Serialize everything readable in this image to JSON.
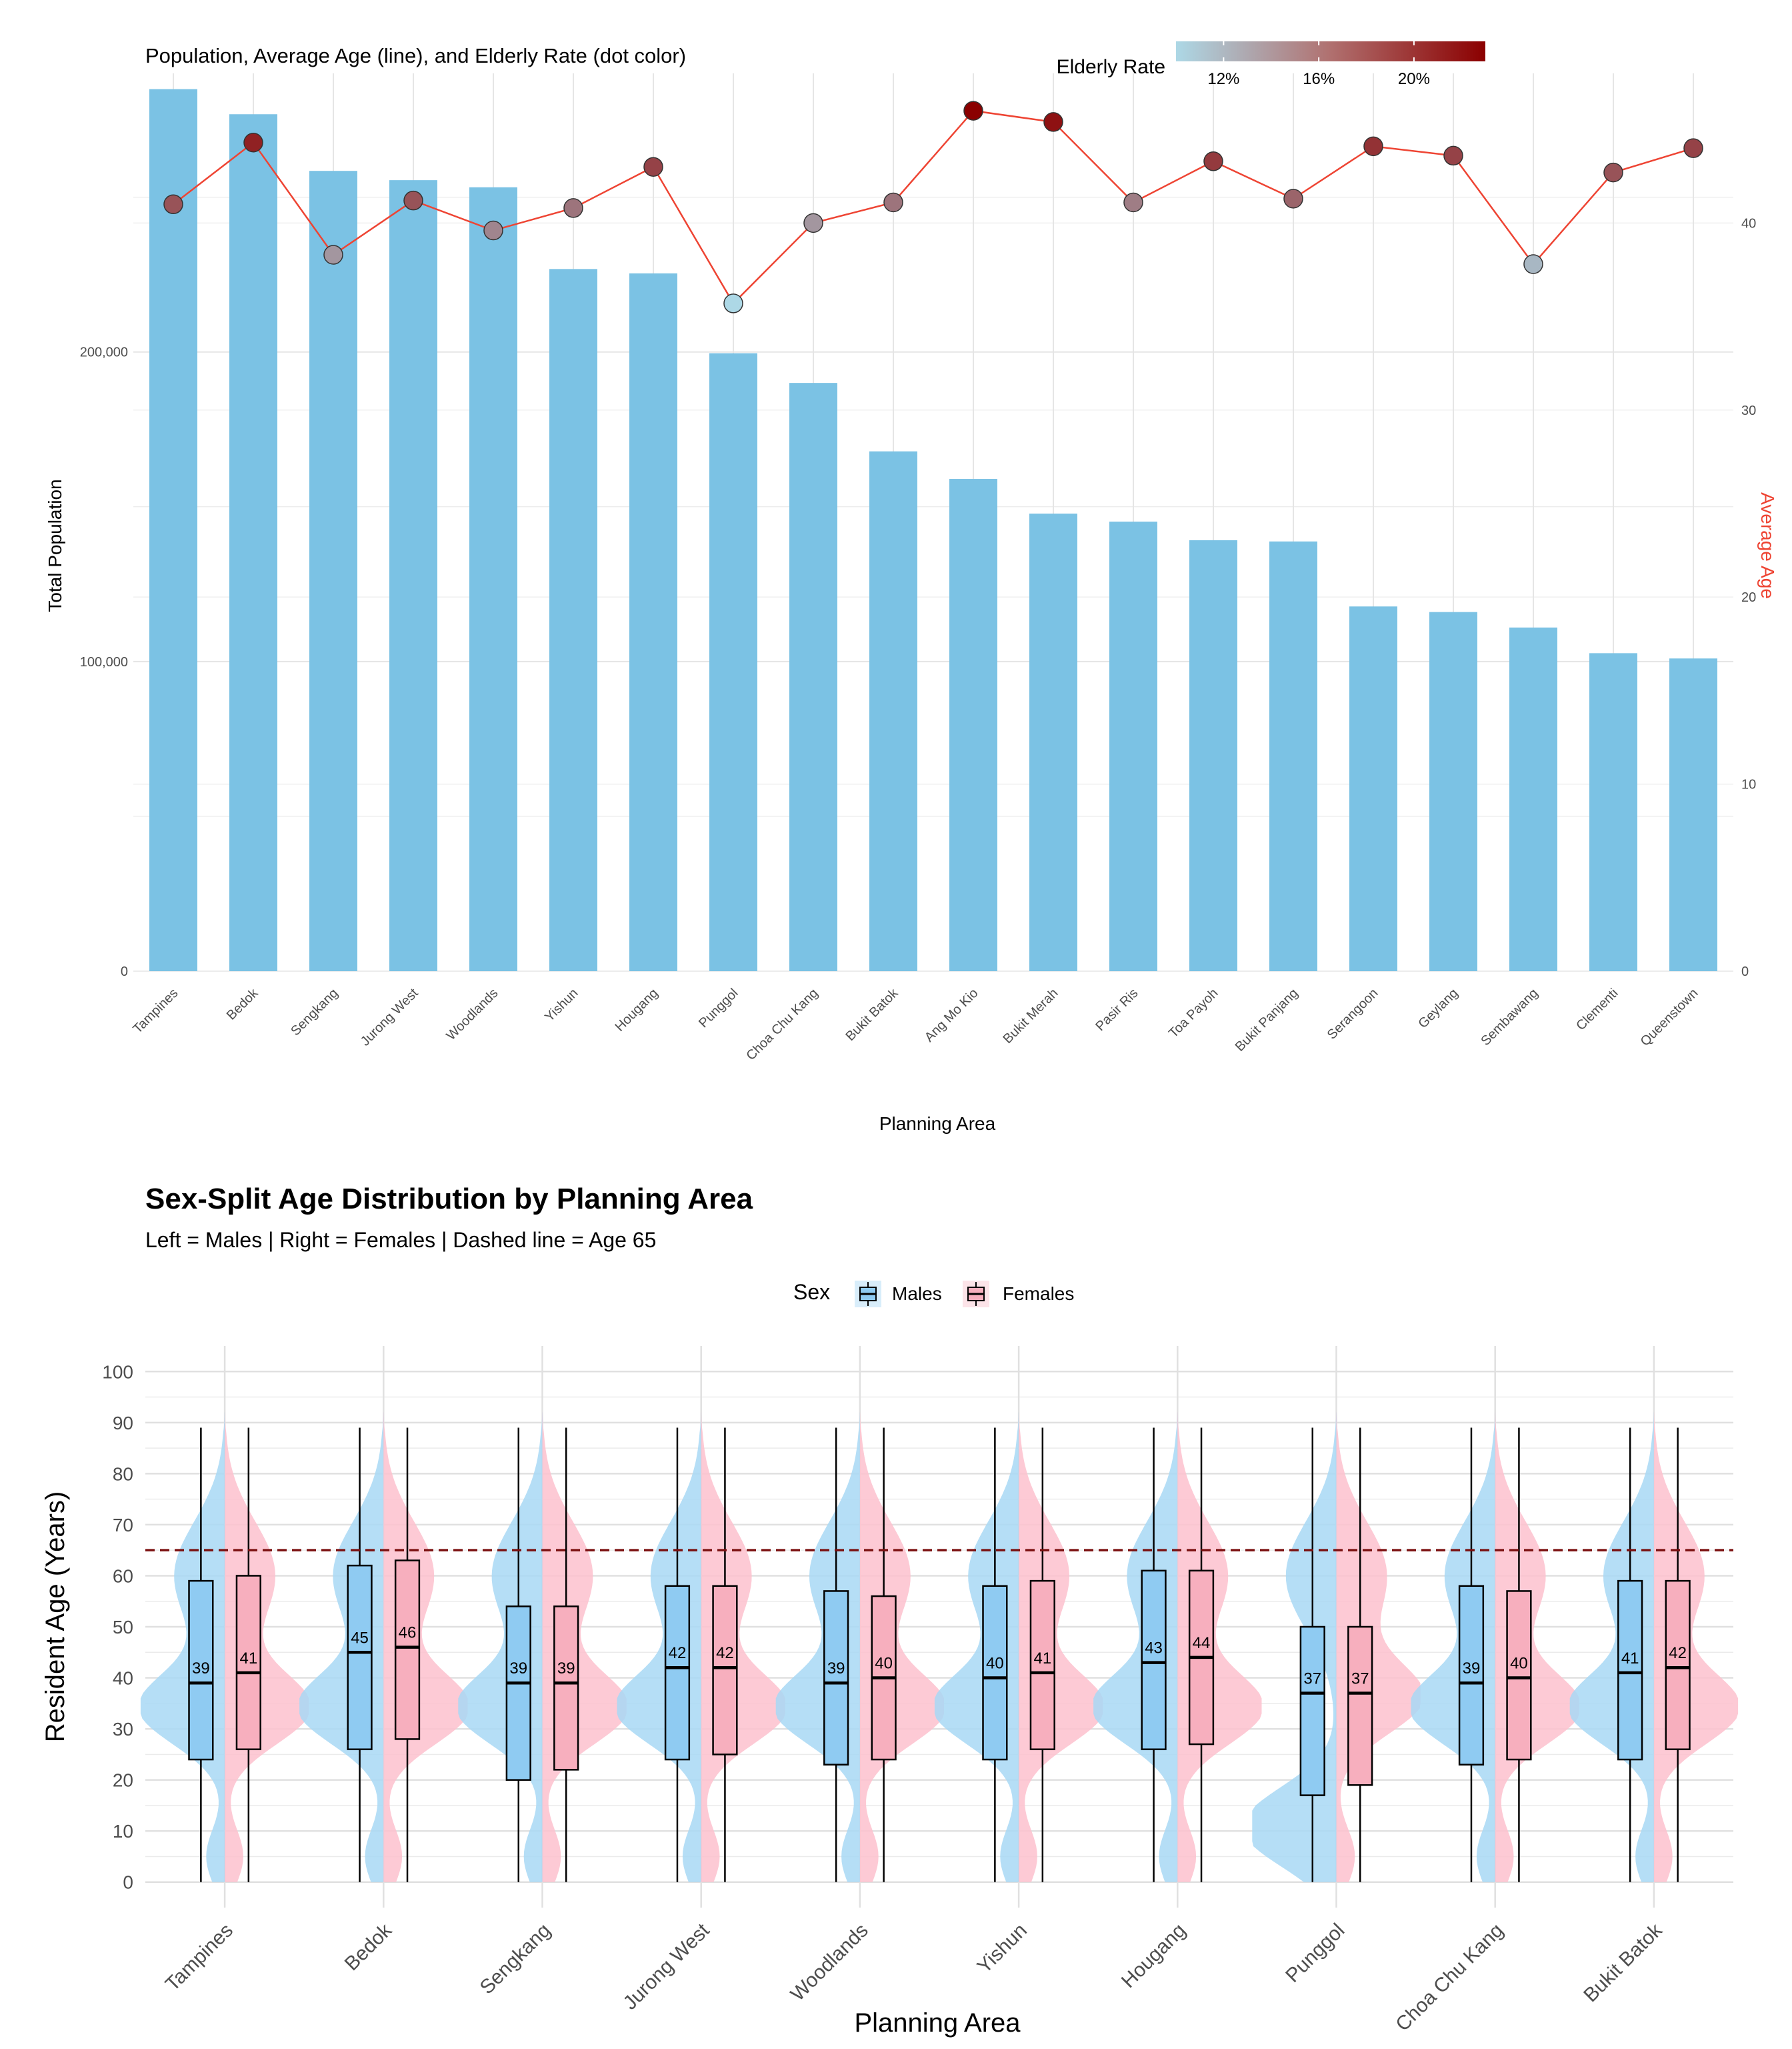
{
  "chart_data": [
    {
      "type": "bar",
      "title": "Population, Average Age (line), and Elderly Rate (dot color)",
      "xlabel": "Planning Area",
      "ylabel": "Total Population",
      "y2label": "Average Age",
      "ylim": [
        0,
        290000
      ],
      "y2lim": [
        0,
        48
      ],
      "y_ticks": [
        "0",
        "100,000",
        "200,000"
      ],
      "y2_ticks": [
        "0",
        "10",
        "20",
        "30",
        "40"
      ],
      "categories": [
        "Tampines",
        "Bedok",
        "Sengkang",
        "Jurong West",
        "Woodlands",
        "Yishun",
        "Hougang",
        "Punggol",
        "Choa Chu Kang",
        "Bukit Batok",
        "Ang Mo Kio",
        "Bukit Merah",
        "Pasir Ris",
        "Toa Payoh",
        "Bukit Panjang",
        "Serangoon",
        "Geylang",
        "Sembawang",
        "Clementi",
        "Queenstown"
      ],
      "series": [
        {
          "name": "Total Population",
          "values": [
            284900,
            276800,
            258500,
            255500,
            253200,
            226800,
            225400,
            199600,
            190000,
            167900,
            159000,
            147800,
            145200,
            139200,
            138800,
            117800,
            116000,
            111000,
            102700,
            101000
          ]
        },
        {
          "name": "Average Age",
          "values": [
            41.0,
            44.3,
            38.3,
            41.2,
            39.6,
            40.8,
            43.0,
            35.7,
            40.0,
            41.1,
            46.0,
            45.4,
            41.1,
            43.3,
            41.3,
            44.1,
            43.6,
            37.8,
            42.7,
            44.0
          ]
        },
        {
          "name": "Elderly Rate",
          "values": [
            0.18,
            0.21,
            0.14,
            0.18,
            0.15,
            0.16,
            0.19,
            0.1,
            0.14,
            0.16,
            0.23,
            0.22,
            0.155,
            0.195,
            0.17,
            0.2,
            0.19,
            0.12,
            0.18,
            0.19
          ]
        }
      ],
      "legend": {
        "title": "Elderly Rate",
        "ticks": [
          "12%",
          "16%",
          "20%"
        ],
        "position": "top-right"
      },
      "colors": {
        "bar": "#7BC2E4",
        "line": "#EE4433",
        "scale_low": "#ADD8E6",
        "scale_high": "#8B0000",
        "grid": "#E5E5E5"
      },
      "grid": true
    },
    {
      "type": "violin-box",
      "title": "Sex-Split Age Distribution by Planning Area",
      "subtitle": "Left = Males | Right = Females | Dashed line = Age 65",
      "xlabel": "Planning Area",
      "ylabel": "Resident Age (Years)",
      "ylim": [
        -5,
        105
      ],
      "y_ticks": [
        "0",
        "10",
        "20",
        "30",
        "40",
        "50",
        "60",
        "70",
        "80",
        "90",
        "100"
      ],
      "reference_line": 65,
      "categories": [
        "Tampines",
        "Bedok",
        "Sengkang",
        "Jurong West",
        "Woodlands",
        "Yishun",
        "Hougang",
        "Punggol",
        "Choa Chu Kang",
        "Bukit Batok"
      ],
      "legend": {
        "title": "Sex",
        "items": [
          "Males",
          "Females"
        ],
        "position": "top"
      },
      "colors": {
        "males_box": "#8FCBF2",
        "males_violin": "#A8D8F5",
        "females_box": "#F7AFBE",
        "females_violin": "#FDC1CE",
        "reference": "#7B1010"
      },
      "series": [
        {
          "name": "Males",
          "median": [
            39,
            45,
            39,
            42,
            39,
            40,
            43,
            37,
            39,
            41
          ],
          "median_label": [
            "39",
            "45",
            "39",
            "42",
            "39",
            "40",
            "43",
            "37",
            "39",
            "41"
          ],
          "q1": [
            24,
            26,
            20,
            24,
            23,
            24,
            26,
            17,
            23,
            24
          ],
          "q3": [
            59,
            62,
            54,
            58,
            57,
            58,
            61,
            50,
            58,
            59
          ],
          "min": [
            0,
            0,
            0,
            0,
            0,
            0,
            0,
            0,
            0,
            0
          ],
          "max": [
            89,
            89,
            89,
            89,
            89,
            89,
            89,
            89,
            89,
            89
          ]
        },
        {
          "name": "Females",
          "median": [
            41,
            46,
            39,
            42,
            40,
            41,
            44,
            37,
            40,
            42
          ],
          "median_label": [
            "41",
            "46",
            "39",
            "42",
            "40",
            "41",
            "44",
            "37",
            "40",
            "42"
          ],
          "q1": [
            26,
            28,
            22,
            25,
            24,
            26,
            27,
            19,
            24,
            26
          ],
          "q3": [
            60,
            63,
            54,
            58,
            56,
            59,
            61,
            50,
            57,
            59
          ],
          "min": [
            0,
            0,
            0,
            0,
            0,
            0,
            0,
            0,
            0,
            0
          ],
          "max": [
            89,
            89,
            89,
            89,
            89,
            89,
            89,
            89,
            89,
            89
          ]
        }
      ]
    }
  ]
}
